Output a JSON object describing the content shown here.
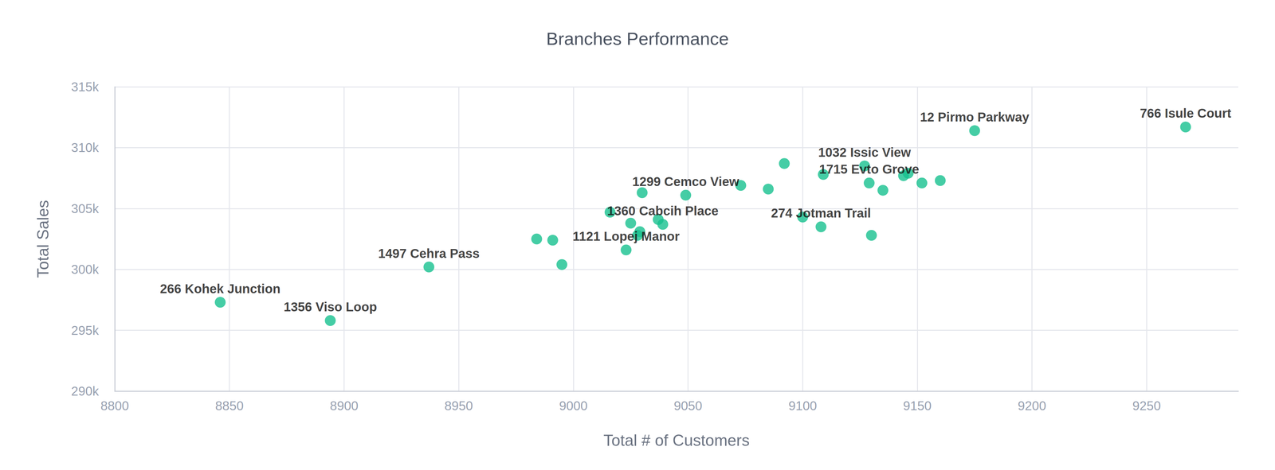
{
  "chart_data": {
    "type": "scatter",
    "title": "Branches Performance",
    "x_label": "Total # of Customers",
    "y_label": "Total Sales",
    "color": "#16c08e",
    "marker": "circle",
    "grid": true,
    "xlim": [
      8800,
      9290
    ],
    "xticks": [
      8800,
      8850,
      8900,
      8950,
      9000,
      9050,
      9100,
      9150,
      9200,
      9250
    ],
    "ylim": [
      290000,
      315000
    ],
    "yticks": [
      {
        "value": 290000,
        "label": "290k"
      },
      {
        "value": 295000,
        "label": "295k"
      },
      {
        "value": 300000,
        "label": "300k"
      },
      {
        "value": 305000,
        "label": "305k"
      },
      {
        "value": 310000,
        "label": "310k"
      },
      {
        "value": 315000,
        "label": "315k"
      }
    ],
    "x": [
      8846,
      8894,
      8937,
      9023,
      9039,
      9049,
      9108,
      9129,
      9127,
      9175,
      9267,
      8984,
      8991,
      8995,
      9016,
      9025,
      9029,
      9028,
      9030,
      9037,
      9073,
      9085,
      9092,
      9100,
      9109,
      9130,
      9135,
      9144,
      9146,
      9152,
      9160
    ],
    "values": [
      297300,
      295800,
      300200,
      301600,
      303700,
      306100,
      303500,
      307100,
      308500,
      311400,
      311700,
      302500,
      302400,
      300400,
      304700,
      303800,
      303100,
      302800,
      306300,
      304100,
      306900,
      306600,
      308700,
      304300,
      307800,
      302800,
      306500,
      307700,
      307900,
      307100,
      307300
    ],
    "labels": [
      "266 Kohek Junction",
      "1356 Viso Loop",
      "1497 Cehra Pass",
      "1121 Lopej Manor",
      "1360 Cabcih Place",
      "1299 Cemco View",
      "274 Jotman Trail",
      "1715 Evto Grove",
      "1032 Issic View",
      "12 Pirmo Parkway",
      "766 Isule Court",
      null,
      null,
      null,
      null,
      null,
      null,
      null,
      null,
      null,
      null,
      null,
      null,
      null,
      null,
      null,
      null,
      null,
      null,
      null,
      null
    ]
  }
}
